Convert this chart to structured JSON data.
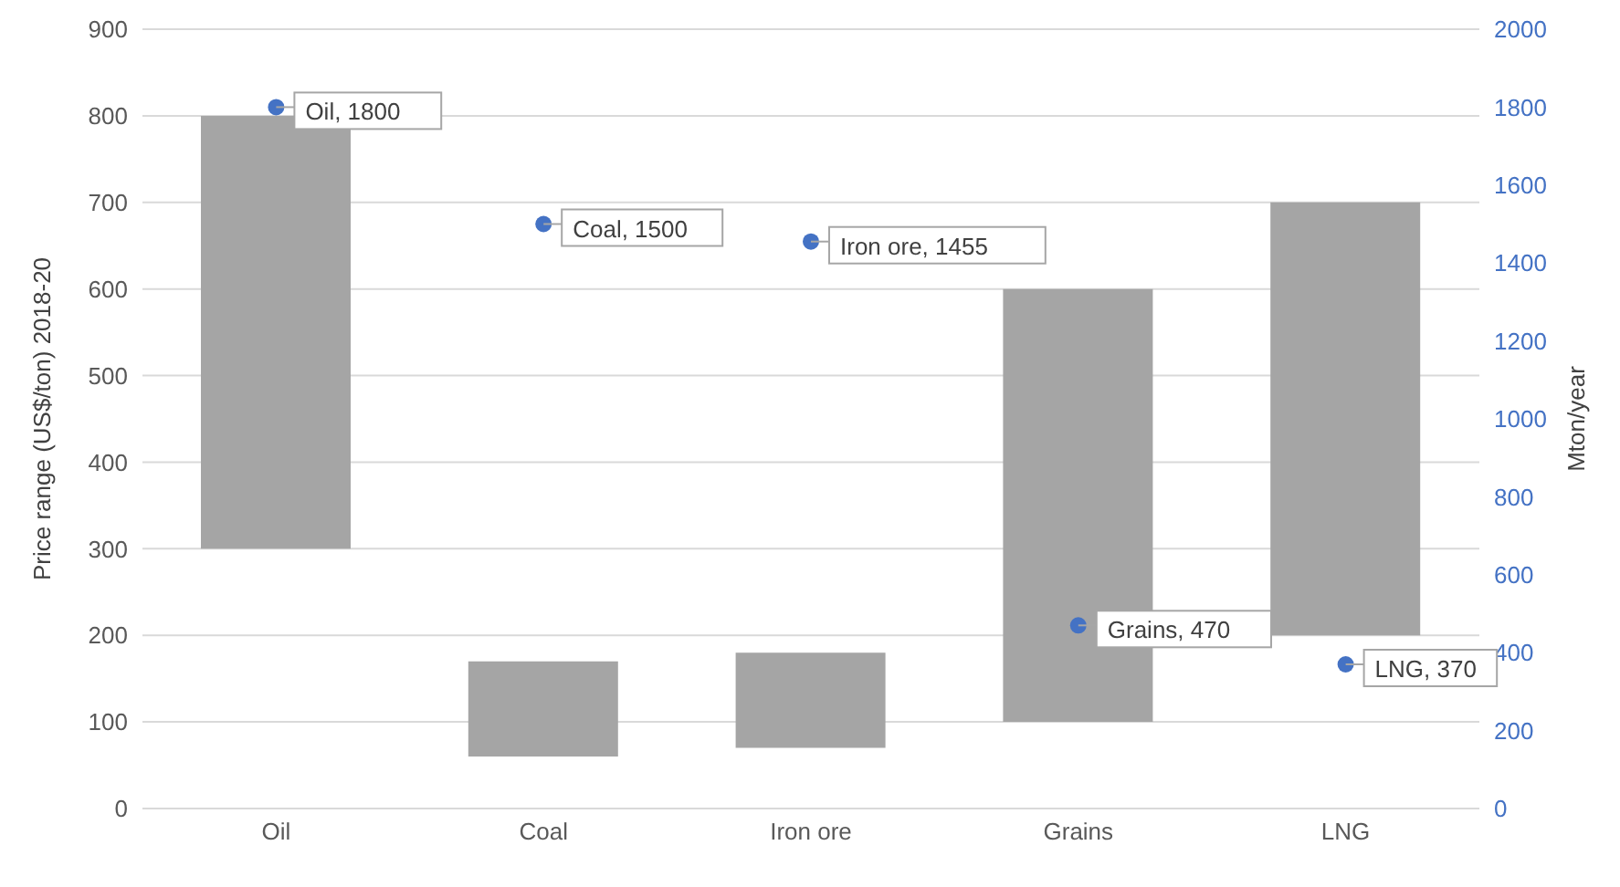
{
  "chart_data": {
    "type": "bar",
    "categories": [
      "Oil",
      "Coal",
      "Iron ore",
      "Grains",
      "LNG"
    ],
    "ylabel": "Price range (US$/ton) 2018-20",
    "y2label": "Mton/year",
    "ylim": [
      0,
      900
    ],
    "yticks": [
      0,
      100,
      200,
      300,
      400,
      500,
      600,
      700,
      800,
      900
    ],
    "y2lim": [
      0,
      2000
    ],
    "y2ticks": [
      0,
      200,
      400,
      600,
      800,
      1000,
      1200,
      1400,
      1600,
      1800,
      2000
    ],
    "grid": "y",
    "marker": "circle",
    "series": [
      {
        "color": "#a5a5a5",
        "base": [
          300,
          60,
          70,
          100,
          200
        ],
        "values": [
          500,
          110,
          110,
          500,
          500
        ]
      },
      {
        "type": "scatter",
        "axis": "y2",
        "color": "#4472c4",
        "values": [
          1800,
          1500,
          1455,
          470,
          370
        ],
        "value_labels": [
          "Oil, 1800",
          "Coal, 1500",
          "Iron ore, 1455",
          "Grains, 470",
          "LNG, 370"
        ]
      }
    ]
  }
}
